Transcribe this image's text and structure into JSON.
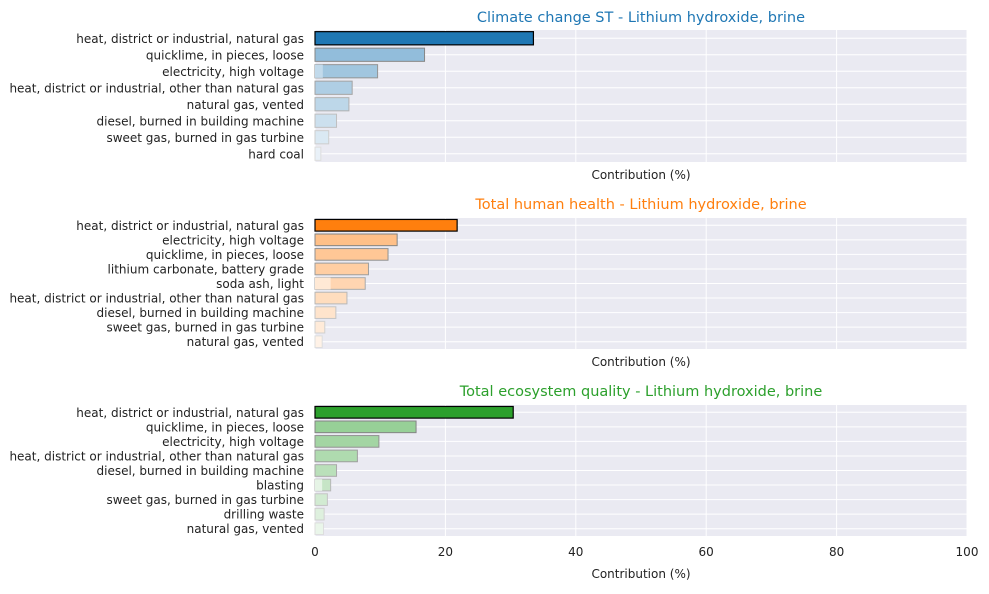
{
  "chart_data": [
    {
      "type": "bar",
      "orientation": "horizontal",
      "title": "Climate change ST - Lithium hydroxide, brine",
      "title_color": "#1f77b4",
      "bar_color": "#1f77b4",
      "xlabel": "Contribution (%)",
      "xlim": [
        0,
        100
      ],
      "show_xticklabels": false,
      "grid": true,
      "categories": [
        "heat, district or industrial, natural gas",
        "quicklime, in pieces, loose",
        "electricity, high voltage",
        "heat, district or industrial, other than natural gas",
        "natural gas, vented",
        "diesel, burned in building machine",
        "sweet gas, burned in gas turbine",
        "hard coal"
      ],
      "values": [
        33.5,
        16.8,
        9.6,
        5.7,
        5.2,
        3.3,
        2.1,
        0.9
      ],
      "secondary_values": [
        null,
        null,
        1.2,
        null,
        null,
        null,
        null,
        null
      ]
    },
    {
      "type": "bar",
      "orientation": "horizontal",
      "title": "Total human health - Lithium hydroxide, brine",
      "title_color": "#ff7f0e",
      "bar_color": "#ff7f0e",
      "xlabel": "Contribution (%)",
      "xlim": [
        0,
        100
      ],
      "show_xticklabels": false,
      "grid": true,
      "categories": [
        "heat, district or industrial, natural gas",
        "electricity, high voltage",
        "quicklime, in pieces, loose",
        "lithium carbonate, battery grade",
        "soda ash, light",
        "heat, district or industrial, other than natural gas",
        "diesel, burned in building machine",
        "sweet gas, burned in gas turbine",
        "natural gas, vented"
      ],
      "values": [
        21.8,
        12.6,
        11.2,
        8.2,
        7.7,
        4.9,
        3.2,
        1.5,
        1.1
      ],
      "secondary_values": [
        null,
        null,
        null,
        null,
        2.4,
        null,
        null,
        null,
        null
      ]
    },
    {
      "type": "bar",
      "orientation": "horizontal",
      "title": "Total ecosystem quality - Lithium hydroxide, brine",
      "title_color": "#2ca02c",
      "bar_color": "#2ca02c",
      "xlabel": "Contribution (%)",
      "xlim": [
        0,
        100
      ],
      "xticks": [
        0,
        20,
        40,
        60,
        80,
        100
      ],
      "show_xticklabels": true,
      "grid": true,
      "categories": [
        "heat, district or industrial, natural gas",
        "quicklime, in pieces, loose",
        "electricity, high voltage",
        "heat, district or industrial, other than natural gas",
        "diesel, burned in building machine",
        "blasting",
        "sweet gas, burned in gas turbine",
        "drilling waste",
        "natural gas, vented"
      ],
      "values": [
        30.4,
        15.5,
        9.8,
        6.5,
        3.3,
        2.4,
        1.9,
        1.4,
        1.3
      ],
      "secondary_values": [
        null,
        null,
        null,
        null,
        null,
        1.1,
        null,
        null,
        null
      ]
    }
  ]
}
